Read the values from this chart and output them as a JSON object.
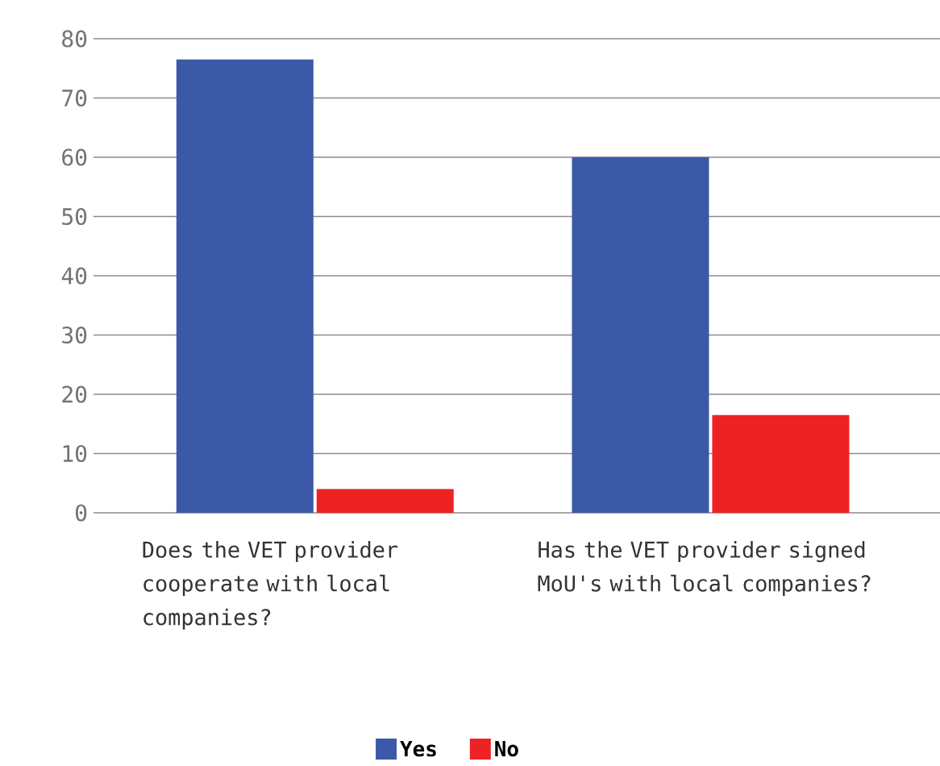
{
  "chart_data": {
    "type": "bar",
    "categories": [
      "Does the VET provider cooperate with local companies?",
      "Has the VET provider signed MoU's with local companies?"
    ],
    "series": [
      {
        "name": "Yes",
        "color": "#3c59a8",
        "values": [
          76.5,
          60
        ]
      },
      {
        "name": "No",
        "color": "#ed2224",
        "values": [
          4,
          16.5
        ]
      }
    ],
    "ylim": [
      0,
      80
    ],
    "yticks": [
      0,
      10,
      20,
      30,
      40,
      50,
      60,
      70,
      80
    ],
    "grid": "y",
    "legend": "bottom"
  }
}
